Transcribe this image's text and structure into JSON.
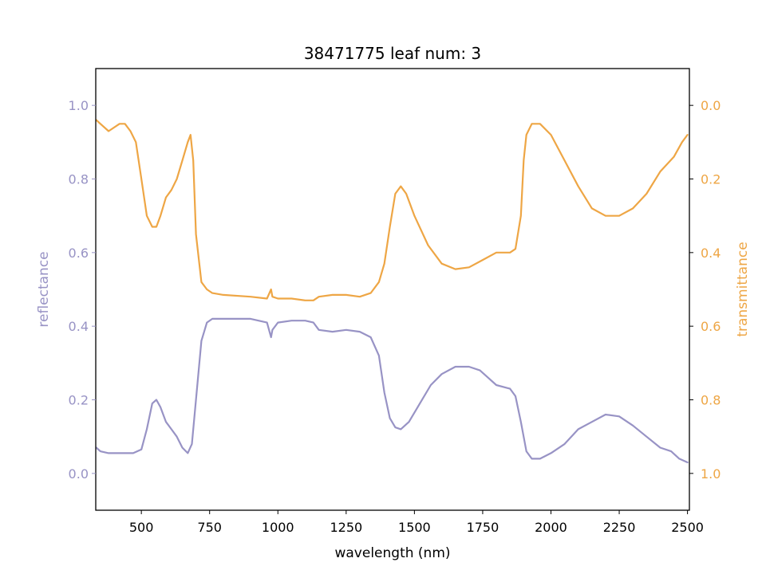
{
  "chart_data": {
    "type": "line",
    "title": "38471775 leaf num: 3",
    "xlabel": "wavelength (nm)",
    "ylabel": "reflectance",
    "y2label": "transmittance",
    "xlim": [
      333,
      2507
    ],
    "ylim": [
      -0.1,
      1.1
    ],
    "y2lim": [
      1.1,
      -0.1
    ],
    "y2_inverted": true,
    "xticks": [
      500,
      750,
      1000,
      1250,
      1500,
      1750,
      2000,
      2250,
      2500
    ],
    "yticks": [
      0.0,
      0.2,
      0.4,
      0.6,
      0.8,
      1.0
    ],
    "y2ticks": [
      0.0,
      0.2,
      0.4,
      0.6,
      0.8,
      1.0
    ],
    "grid": false,
    "colors": {
      "reflectance": "#9893c5",
      "transmittance": "#eea645",
      "axes": "#000000"
    },
    "series": [
      {
        "name": "reflectance",
        "axis": "left",
        "x": [
          335,
          350,
          380,
          420,
          470,
          500,
          520,
          540,
          555,
          570,
          590,
          610,
          630,
          650,
          670,
          685,
          700,
          720,
          740,
          760,
          800,
          900,
          960,
          975,
          980,
          1000,
          1050,
          1100,
          1130,
          1150,
          1200,
          1250,
          1300,
          1340,
          1370,
          1390,
          1410,
          1430,
          1450,
          1480,
          1520,
          1560,
          1600,
          1650,
          1700,
          1740,
          1770,
          1800,
          1850,
          1870,
          1890,
          1910,
          1930,
          1960,
          2000,
          2050,
          2100,
          2150,
          2200,
          2250,
          2300,
          2350,
          2400,
          2440,
          2470,
          2500
        ],
        "y": [
          0.07,
          0.06,
          0.055,
          0.055,
          0.055,
          0.065,
          0.12,
          0.19,
          0.2,
          0.18,
          0.14,
          0.12,
          0.1,
          0.07,
          0.055,
          0.08,
          0.2,
          0.36,
          0.41,
          0.42,
          0.42,
          0.42,
          0.41,
          0.37,
          0.39,
          0.41,
          0.415,
          0.415,
          0.41,
          0.39,
          0.385,
          0.39,
          0.385,
          0.37,
          0.32,
          0.22,
          0.15,
          0.125,
          0.12,
          0.14,
          0.19,
          0.24,
          0.27,
          0.29,
          0.29,
          0.28,
          0.26,
          0.24,
          0.23,
          0.21,
          0.14,
          0.06,
          0.04,
          0.04,
          0.055,
          0.08,
          0.12,
          0.14,
          0.16,
          0.155,
          0.13,
          0.1,
          0.07,
          0.06,
          0.04,
          0.03
        ]
      },
      {
        "name": "transmittance",
        "axis": "right",
        "x": [
          335,
          350,
          380,
          420,
          440,
          460,
          480,
          500,
          520,
          540,
          555,
          570,
          590,
          610,
          630,
          650,
          670,
          680,
          690,
          700,
          720,
          740,
          760,
          800,
          900,
          960,
          975,
          980,
          1000,
          1050,
          1100,
          1130,
          1150,
          1200,
          1250,
          1300,
          1340,
          1370,
          1390,
          1410,
          1430,
          1450,
          1470,
          1500,
          1550,
          1600,
          1650,
          1700,
          1750,
          1800,
          1850,
          1870,
          1890,
          1900,
          1910,
          1930,
          1960,
          2000,
          2050,
          2100,
          2150,
          2200,
          2250,
          2300,
          2350,
          2400,
          2450,
          2480,
          2500
        ],
        "y": [
          0.04,
          0.05,
          0.07,
          0.05,
          0.05,
          0.07,
          0.1,
          0.2,
          0.3,
          0.33,
          0.33,
          0.3,
          0.25,
          0.23,
          0.2,
          0.15,
          0.1,
          0.08,
          0.15,
          0.35,
          0.48,
          0.5,
          0.51,
          0.515,
          0.52,
          0.525,
          0.5,
          0.52,
          0.525,
          0.525,
          0.53,
          0.53,
          0.52,
          0.515,
          0.515,
          0.52,
          0.51,
          0.48,
          0.43,
          0.33,
          0.24,
          0.22,
          0.24,
          0.3,
          0.38,
          0.43,
          0.445,
          0.44,
          0.42,
          0.4,
          0.4,
          0.39,
          0.3,
          0.15,
          0.08,
          0.05,
          0.05,
          0.08,
          0.15,
          0.22,
          0.28,
          0.3,
          0.3,
          0.28,
          0.24,
          0.18,
          0.14,
          0.1,
          0.08
        ]
      }
    ]
  }
}
